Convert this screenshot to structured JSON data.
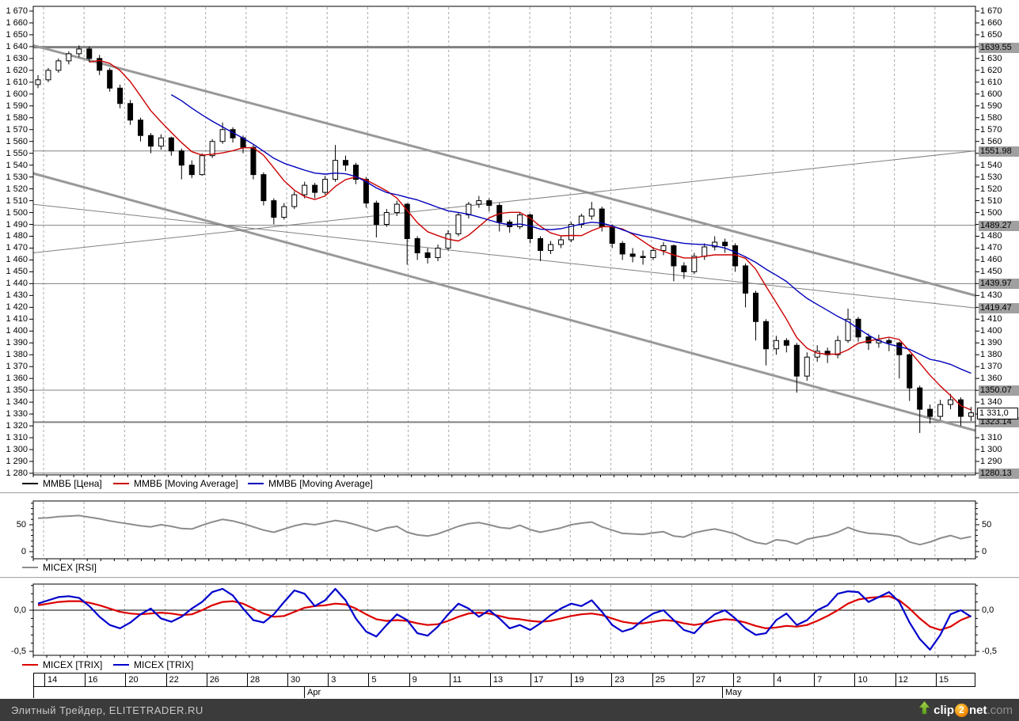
{
  "colors": {
    "price": "#000000",
    "ma_fast": "#cc0000",
    "ma_slow": "#0000bb",
    "rsi_line": "#8c8c8c",
    "trix_fast": "#dd0000",
    "trix_slow": "#0000cc",
    "grid_dash": "#a8a8a8",
    "level_line": "#808080",
    "trend_line": "#999999",
    "highlight_bg": "#a0a0a0",
    "statusbar_bg": "#3b3b3b",
    "statusbar_text": "#c9c9c9",
    "logo_orange": "#f08500",
    "logo_green": "#76b82a"
  },
  "main_panel": {
    "legend": [
      {
        "label": "ММВБ [Цена]",
        "color": "#000000",
        "x": 28
      },
      {
        "label": "ММВБ [Moving Average]",
        "color": "#cc0000",
        "x": 143
      },
      {
        "label": "ММВБ [Moving Average]",
        "color": "#0000bb",
        "x": 313
      }
    ],
    "y_axis": {
      "max": 1670,
      "min": 1280,
      "step": 10
    },
    "right_skip": [
      1640,
      1550,
      1490,
      1440,
      1420,
      1350,
      1330,
      1320,
      1280
    ],
    "right_highlights": [
      {
        "price": 1639.55,
        "label": "1639.55"
      },
      {
        "price": 1551.98,
        "label": "1551.98"
      },
      {
        "price": 1489.27,
        "label": "1489.27"
      },
      {
        "price": 1439.97,
        "label": "1439.97"
      },
      {
        "price": 1419.47,
        "label": "1419.47"
      },
      {
        "price": 1350.07,
        "label": "1350.07"
      },
      {
        "price": 1323.14,
        "label": "1323.14"
      },
      {
        "price": 1280.13,
        "label": "1280.13"
      }
    ],
    "current_price": {
      "price": 1331.0,
      "label": "1 331,0"
    }
  },
  "chart_data": [
    {
      "type": "candlestick",
      "title": "ММВБ [Цена]",
      "ylim": [
        1278,
        1674
      ],
      "grid": "dashed-vertical",
      "candles": [
        [
          1608,
          1616,
          1605,
          1612
        ],
        [
          1612,
          1622,
          1610,
          1620
        ],
        [
          1620,
          1630,
          1618,
          1628
        ],
        [
          1628,
          1636,
          1625,
          1634
        ],
        [
          1634,
          1641,
          1631,
          1638
        ],
        [
          1638,
          1640,
          1627,
          1630
        ],
        [
          1630,
          1633,
          1616,
          1620
        ],
        [
          1620,
          1622,
          1602,
          1605
        ],
        [
          1605,
          1608,
          1588,
          1592
        ],
        [
          1592,
          1595,
          1574,
          1578
        ],
        [
          1578,
          1580,
          1560,
          1565
        ],
        [
          1565,
          1567,
          1550,
          1556
        ],
        [
          1556,
          1566,
          1553,
          1563
        ],
        [
          1563,
          1564,
          1548,
          1552
        ],
        [
          1552,
          1554,
          1528,
          1540
        ],
        [
          1540,
          1544,
          1529,
          1532
        ],
        [
          1532,
          1550,
          1531,
          1548
        ],
        [
          1548,
          1562,
          1546,
          1560
        ],
        [
          1560,
          1576,
          1558,
          1570
        ],
        [
          1570,
          1572,
          1559,
          1563
        ],
        [
          1563,
          1565,
          1550,
          1555
        ],
        [
          1555,
          1557,
          1528,
          1532
        ],
        [
          1532,
          1534,
          1506,
          1510
        ],
        [
          1510,
          1512,
          1490,
          1496
        ],
        [
          1496,
          1508,
          1494,
          1505
        ],
        [
          1505,
          1518,
          1503,
          1515
        ],
        [
          1515,
          1526,
          1512,
          1523
        ],
        [
          1523,
          1525,
          1512,
          1517
        ],
        [
          1517,
          1531,
          1515,
          1528
        ],
        [
          1528,
          1557,
          1526,
          1544
        ],
        [
          1544,
          1548,
          1535,
          1540
        ],
        [
          1540,
          1542,
          1524,
          1528
        ],
        [
          1528,
          1530,
          1504,
          1508
        ],
        [
          1508,
          1510,
          1479,
          1490
        ],
        [
          1490,
          1503,
          1488,
          1500
        ],
        [
          1500,
          1510,
          1497,
          1507
        ],
        [
          1507,
          1508,
          1456,
          1478
        ],
        [
          1478,
          1480,
          1460,
          1466
        ],
        [
          1466,
          1470,
          1457,
          1462
        ],
        [
          1462,
          1473,
          1459,
          1470
        ],
        [
          1470,
          1485,
          1468,
          1482
        ],
        [
          1482,
          1500,
          1480,
          1498
        ],
        [
          1498,
          1509,
          1495,
          1507
        ],
        [
          1507,
          1514,
          1504,
          1510
        ],
        [
          1510,
          1512,
          1501,
          1506
        ],
        [
          1506,
          1508,
          1484,
          1492
        ],
        [
          1492,
          1494,
          1483,
          1488
        ],
        [
          1488,
          1500,
          1486,
          1498
        ],
        [
          1498,
          1499,
          1474,
          1478
        ],
        [
          1478,
          1480,
          1459,
          1468
        ],
        [
          1468,
          1476,
          1465,
          1473
        ],
        [
          1473,
          1480,
          1470,
          1477
        ],
        [
          1477,
          1492,
          1475,
          1490
        ],
        [
          1490,
          1499,
          1487,
          1497
        ],
        [
          1497,
          1509,
          1494,
          1503
        ],
        [
          1503,
          1505,
          1484,
          1488
        ],
        [
          1488,
          1490,
          1470,
          1474
        ],
        [
          1474,
          1476,
          1460,
          1465
        ],
        [
          1465,
          1470,
          1458,
          1463
        ],
        [
          1463,
          1468,
          1456,
          1462
        ],
        [
          1462,
          1471,
          1460,
          1468
        ],
        [
          1468,
          1475,
          1464,
          1472
        ],
        [
          1472,
          1473,
          1442,
          1455
        ],
        [
          1455,
          1458,
          1444,
          1450
        ],
        [
          1450,
          1466,
          1448,
          1463
        ],
        [
          1463,
          1474,
          1460,
          1471
        ],
        [
          1471,
          1480,
          1468,
          1475
        ],
        [
          1475,
          1478,
          1466,
          1472
        ],
        [
          1472,
          1474,
          1450,
          1455
        ],
        [
          1455,
          1457,
          1420,
          1432
        ],
        [
          1432,
          1434,
          1392,
          1408
        ],
        [
          1408,
          1410,
          1371,
          1385
        ],
        [
          1385,
          1396,
          1380,
          1392
        ],
        [
          1392,
          1394,
          1382,
          1388
        ],
        [
          1388,
          1390,
          1348,
          1362
        ],
        [
          1362,
          1382,
          1358,
          1378
        ],
        [
          1378,
          1388,
          1374,
          1383
        ],
        [
          1383,
          1386,
          1373,
          1380
        ],
        [
          1380,
          1396,
          1377,
          1392
        ],
        [
          1392,
          1419,
          1390,
          1410
        ],
        [
          1410,
          1412,
          1391,
          1395
        ],
        [
          1395,
          1398,
          1384,
          1390
        ],
        [
          1390,
          1397,
          1386,
          1392
        ],
        [
          1392,
          1394,
          1383,
          1390
        ],
        [
          1390,
          1391,
          1360,
          1380
        ],
        [
          1380,
          1381,
          1341,
          1352
        ],
        [
          1352,
          1354,
          1314,
          1334
        ],
        [
          1334,
          1338,
          1322,
          1328
        ],
        [
          1328,
          1342,
          1325,
          1338
        ],
        [
          1338,
          1347,
          1334,
          1342
        ],
        [
          1342,
          1344,
          1320,
          1328
        ],
        [
          1328,
          1336,
          1324,
          1331
        ]
      ],
      "moving_averages": [
        {
          "name": "ММВБ [Moving Average]",
          "color": "#cc0000",
          "period": 6
        },
        {
          "name": "ММВБ [Moving Average]",
          "color": "#0000bb",
          "period": 14
        }
      ],
      "horizontal_levels": [
        {
          "price": 1639.55,
          "width": 3
        },
        {
          "price": 1551.98,
          "width": 1
        },
        {
          "price": 1489.27,
          "width": 1
        },
        {
          "price": 1439.97,
          "width": 1
        },
        {
          "price": 1350.07,
          "width": 1
        },
        {
          "price": 1323.14,
          "width": 2
        },
        {
          "price": 1280.13,
          "width": 1
        }
      ],
      "trendlines": [
        {
          "x_from": 42,
          "price_from": 1641,
          "x_to": 1232,
          "price_to": 1430,
          "width": 3
        },
        {
          "x_from": 42,
          "price_from": 1533,
          "x_to": 1232,
          "price_to": 1316,
          "width": 3
        },
        {
          "x_from": 42,
          "price_from": 1507,
          "x_to": 1232,
          "price_to": 1419.5,
          "width": 1
        },
        {
          "x_from": 42,
          "price_from": 1466,
          "x_to": 1232,
          "price_to": 1552,
          "width": 1
        }
      ],
      "last_price": 1331.0
    },
    {
      "type": "line",
      "name": "MICEX [RSI]",
      "ylim": [
        -13,
        95
      ],
      "yticks": [
        0,
        50
      ],
      "values": [
        62,
        63,
        65,
        66,
        67,
        64,
        61,
        57,
        54,
        51,
        48,
        46,
        50,
        47,
        43,
        42,
        49,
        55,
        60,
        57,
        52,
        46,
        40,
        36,
        42,
        48,
        52,
        50,
        54,
        58,
        55,
        50,
        44,
        38,
        44,
        47,
        36,
        31,
        29,
        33,
        40,
        47,
        52,
        54,
        50,
        45,
        43,
        49,
        41,
        36,
        40,
        44,
        50,
        53,
        55,
        46,
        40,
        34,
        33,
        32,
        35,
        37,
        29,
        27,
        35,
        39,
        42,
        38,
        33,
        24,
        17,
        14,
        22,
        20,
        14,
        23,
        27,
        30,
        36,
        45,
        38,
        34,
        33,
        31,
        28,
        18,
        13,
        18,
        25,
        30,
        24,
        28
      ]
    },
    {
      "type": "line",
      "name": "MICEX [TRIX]",
      "ylim": [
        -0.55,
        0.32
      ],
      "yticks": [
        0.0,
        -0.5
      ],
      "zero_line": true,
      "series": [
        {
          "name": "MICEX [TRIX]",
          "color": "#dd0000",
          "values": [
            0.06,
            0.08,
            0.1,
            0.11,
            0.11,
            0.09,
            0.06,
            0.02,
            -0.02,
            -0.04,
            -0.05,
            -0.04,
            -0.03,
            -0.04,
            -0.06,
            -0.05,
            0.0,
            0.06,
            0.1,
            0.11,
            0.08,
            0.02,
            -0.04,
            -0.08,
            -0.07,
            -0.02,
            0.03,
            0.05,
            0.06,
            0.08,
            0.07,
            0.02,
            -0.05,
            -0.11,
            -0.13,
            -0.12,
            -0.13,
            -0.16,
            -0.18,
            -0.17,
            -0.13,
            -0.08,
            -0.04,
            -0.03,
            -0.04,
            -0.07,
            -0.1,
            -0.11,
            -0.13,
            -0.14,
            -0.13,
            -0.1,
            -0.07,
            -0.05,
            -0.04,
            -0.06,
            -0.1,
            -0.14,
            -0.16,
            -0.16,
            -0.14,
            -0.12,
            -0.13,
            -0.16,
            -0.18,
            -0.16,
            -0.13,
            -0.11,
            -0.12,
            -0.15,
            -0.19,
            -0.22,
            -0.21,
            -0.19,
            -0.2,
            -0.18,
            -0.13,
            -0.07,
            0.0,
            0.08,
            0.13,
            0.15,
            0.16,
            0.17,
            0.12,
            0.02,
            -0.1,
            -0.2,
            -0.24,
            -0.2,
            -0.12,
            -0.07
          ]
        },
        {
          "name": "MICEX [TRIX]",
          "color": "#0000cc",
          "values": [
            0.08,
            0.12,
            0.16,
            0.17,
            0.15,
            0.05,
            -0.08,
            -0.18,
            -0.22,
            -0.15,
            -0.05,
            0.02,
            -0.1,
            -0.14,
            -0.08,
            0.02,
            0.1,
            0.22,
            0.26,
            0.18,
            0.02,
            -0.12,
            -0.15,
            -0.05,
            0.1,
            0.24,
            0.2,
            0.05,
            0.12,
            0.26,
            0.12,
            -0.1,
            -0.26,
            -0.32,
            -0.18,
            -0.05,
            -0.12,
            -0.28,
            -0.31,
            -0.2,
            -0.05,
            0.08,
            0.02,
            -0.08,
            0.0,
            -0.1,
            -0.22,
            -0.18,
            -0.24,
            -0.16,
            -0.06,
            0.02,
            0.08,
            0.05,
            0.12,
            -0.02,
            -0.18,
            -0.26,
            -0.22,
            -0.12,
            -0.04,
            0.0,
            -0.12,
            -0.24,
            -0.28,
            -0.15,
            -0.05,
            0.0,
            -0.1,
            -0.22,
            -0.3,
            -0.28,
            -0.12,
            -0.04,
            -0.18,
            -0.12,
            0.0,
            0.06,
            0.2,
            0.23,
            0.22,
            0.1,
            0.16,
            0.22,
            0.1,
            -0.15,
            -0.35,
            -0.48,
            -0.3,
            -0.05,
            0.0,
            -0.08
          ]
        }
      ]
    }
  ],
  "rsi_panel": {
    "legend": [
      {
        "label": "MICEX [RSI]",
        "color": "#8c8c8c",
        "x": 28
      }
    ],
    "y_tick_labels": [
      {
        "value": 50,
        "label": "50"
      },
      {
        "value": 0,
        "label": "0"
      }
    ]
  },
  "trix_panel": {
    "legend": [
      {
        "label": "MICEX [TRIX]",
        "color": "#dd0000",
        "x": 28
      },
      {
        "label": "MICEX [TRIX]",
        "color": "#0000cc",
        "x": 143
      }
    ],
    "y_tick_labels": [
      {
        "value": 0.0,
        "label": "0,0"
      },
      {
        "value": -0.5,
        "label": "-0,5"
      }
    ]
  },
  "x_axis": {
    "day_cells": [
      "14",
      "16",
      "20",
      "22",
      "26",
      "28",
      "30",
      "3",
      "5",
      "9",
      "11",
      "13",
      "17",
      "19",
      "23",
      "25",
      "27",
      "2",
      "4",
      "7",
      "10",
      "12",
      "15"
    ],
    "months": [
      {
        "label": "Apr",
        "x": 384
      },
      {
        "label": "May",
        "x": 912
      }
    ]
  },
  "status_bar": {
    "text": "Элитный Трейдер, ELITETRADER.RU"
  },
  "watermark": {
    "icon": "up-arrow",
    "part1": "clip",
    "part2": "2",
    "part3": "net",
    "part4": ".com"
  }
}
